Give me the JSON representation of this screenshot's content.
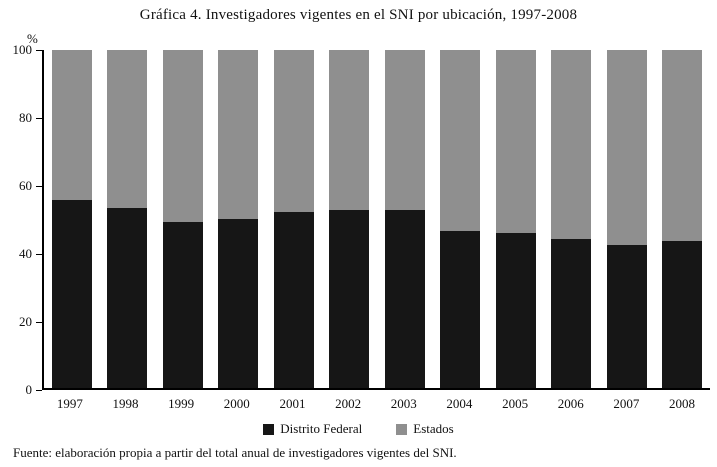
{
  "title": "Gráfica 4. Investigadores vigentes en el SNI por ubicación, 1997-2008",
  "footer": "Fuente: elaboración propia a partir del total anual de investigadores vigentes del SNI.",
  "chart_data": {
    "type": "bar",
    "stacked": true,
    "title": "Gráfica 4. Investigadores vigentes en el SNI por ubicación, 1997-2008",
    "xlabel": "",
    "ylabel": "%",
    "ylim": [
      0,
      100
    ],
    "yticks": [
      0,
      20,
      40,
      60,
      80,
      100
    ],
    "grid": false,
    "legend_position": "bottom",
    "categories": [
      "1997",
      "1998",
      "1999",
      "2000",
      "2001",
      "2002",
      "2003",
      "2004",
      "2005",
      "2006",
      "2007",
      "2008"
    ],
    "series": [
      {
        "name": "Distrito Federal",
        "color": "#161616",
        "values": [
          55.5,
          53.2,
          49.0,
          50.0,
          52.0,
          52.8,
          52.8,
          46.5,
          46.0,
          44.2,
          42.3,
          43.5
        ]
      },
      {
        "name": "Estados",
        "color": "#8f8f8f",
        "values": [
          44.5,
          46.8,
          51.0,
          50.0,
          48.0,
          47.2,
          47.2,
          53.5,
          54.0,
          55.8,
          57.7,
          56.5
        ]
      }
    ]
  }
}
